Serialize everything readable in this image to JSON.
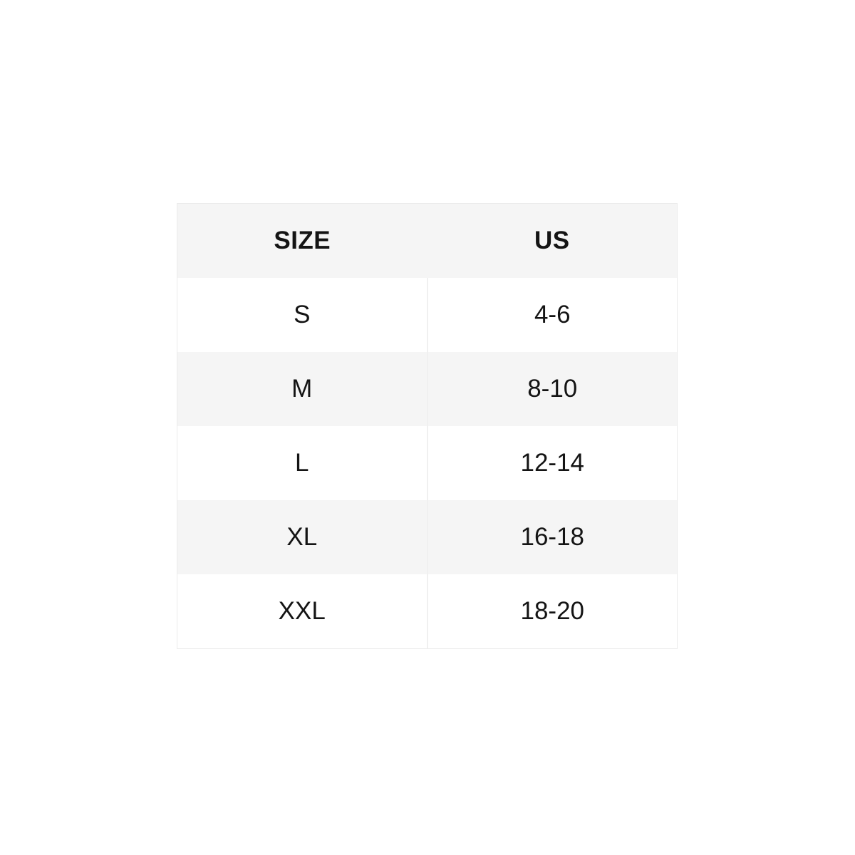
{
  "size_chart": {
    "headers": [
      "SIZE",
      "US"
    ],
    "rows": [
      [
        "S",
        "4-6"
      ],
      [
        "M",
        "8-10"
      ],
      [
        "L",
        "12-14"
      ],
      [
        "XL",
        "16-18"
      ],
      [
        "XXL",
        "18-20"
      ]
    ]
  },
  "chart_data": {
    "type": "table",
    "columns": [
      "SIZE",
      "US"
    ],
    "rows": [
      [
        "S",
        "4-6"
      ],
      [
        "M",
        "8-10"
      ],
      [
        "L",
        "12-14"
      ],
      [
        "XL",
        "16-18"
      ],
      [
        "XXL",
        "18-20"
      ]
    ]
  },
  "colors": {
    "page_bg": "#ffffff",
    "header_bg": "#f5f5f5",
    "row_bg": "#ffffff",
    "row_alt_bg": "#f5f5f5",
    "divider": "#f0f0f0",
    "outer_border": "#ebebeb",
    "text": "#141414"
  }
}
